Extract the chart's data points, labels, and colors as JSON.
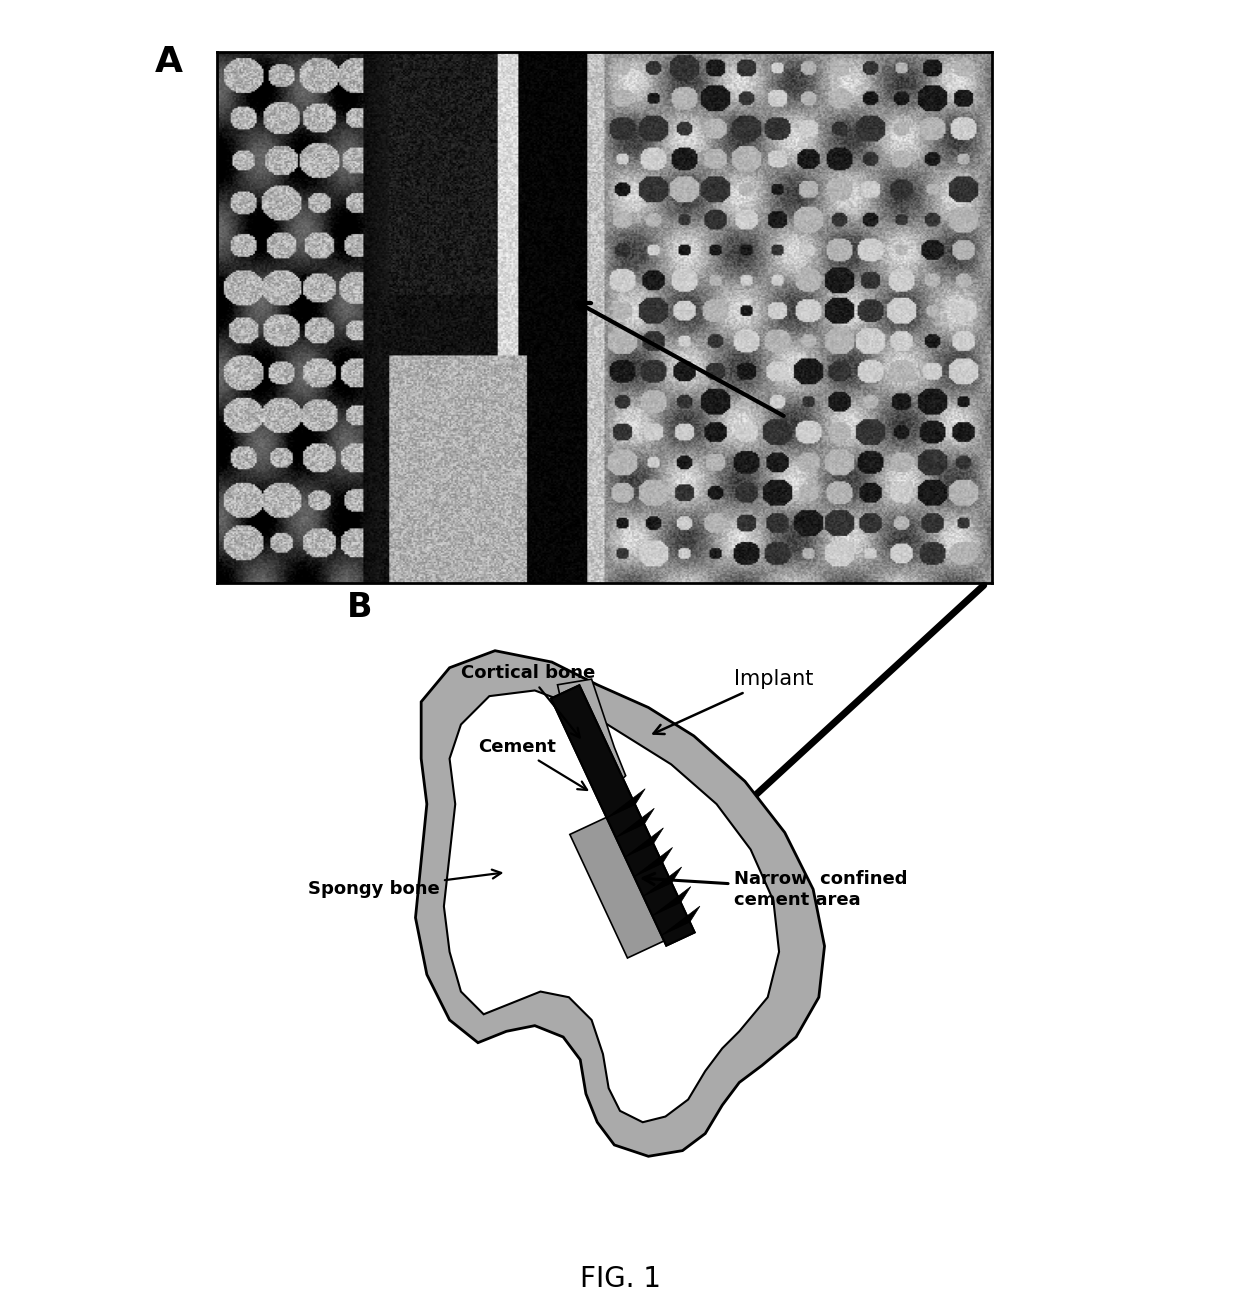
{
  "background_color": "#ffffff",
  "fig_width": 12.4,
  "fig_height": 13.11,
  "dpi": 100,
  "label_A": "A",
  "label_B": "B",
  "fig_caption": "FIG. 1",
  "label_implant": "Implant",
  "label_cortical": "Cortical bone",
  "label_cement": "Cement",
  "label_spongy": "Spongy bone",
  "label_narrow": "Narrow  confined\ncement area",
  "bone_gray": "#aaaaaa",
  "bone_dark_gray": "#888888",
  "implant_color": "#0a0a0a",
  "cement_color": "#999999",
  "white": "#ffffff"
}
